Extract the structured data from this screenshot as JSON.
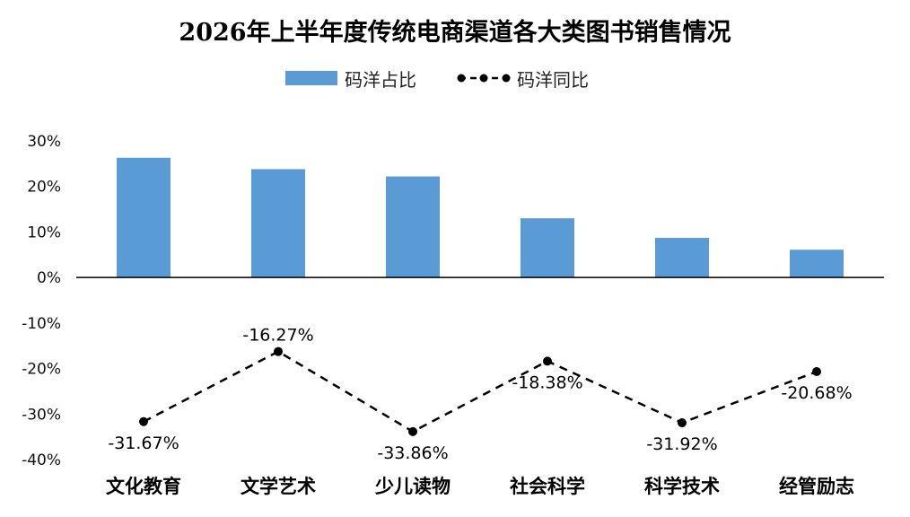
{
  "chart_data": {
    "type": "bar",
    "title": "2026年上半年度传统电商渠道各大类图书销售情况",
    "categories": [
      "文化教育",
      "文学艺术",
      "少儿读物",
      "社会科学",
      "科学技术",
      "经管励志"
    ],
    "series": [
      {
        "name": "码洋占比",
        "type": "bar",
        "color": "#5b9bd5",
        "values": [
          26.3,
          23.8,
          22.2,
          13.0,
          8.7,
          6.1
        ]
      },
      {
        "name": "码洋同比",
        "type": "line",
        "style": "dashed",
        "color": "#000000",
        "values": [
          -31.67,
          -16.27,
          -33.86,
          -18.38,
          -31.92,
          -20.68
        ],
        "labels": [
          "-31.67%",
          "-16.27%",
          "-33.86%",
          "-18.38%",
          "-31.92%",
          "-20.68%"
        ]
      }
    ],
    "y_axis": {
      "ylim": [
        -40,
        30
      ],
      "ticks": [
        30,
        20,
        10,
        0,
        -10,
        -20,
        -30,
        -40
      ],
      "tick_labels": [
        "30%",
        "20%",
        "10%",
        "0%",
        "-10%",
        "-20%",
        "-30%",
        "-40%"
      ]
    },
    "legend_position": "top",
    "grid": false
  }
}
